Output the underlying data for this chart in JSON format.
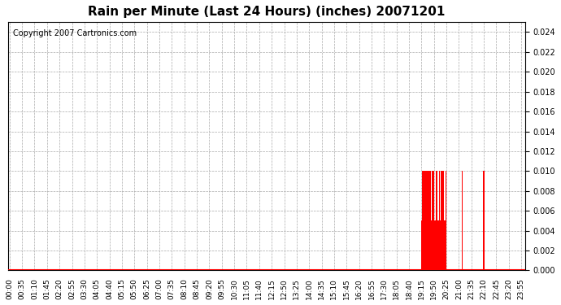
{
  "title": "Rain per Minute (Last 24 Hours) (inches) 20071201",
  "copyright_text": "Copyright 2007 Cartronics.com",
  "bar_color": "#ff0000",
  "baseline_color": "#ff0000",
  "background_color": "#ffffff",
  "grid_color": "#aaaaaa",
  "ylim": [
    0.0,
    0.025
  ],
  "yticks": [
    0.0,
    0.002,
    0.004,
    0.006,
    0.008,
    0.01,
    0.012,
    0.014,
    0.016,
    0.018,
    0.02,
    0.022,
    0.024
  ],
  "total_minutes": 1440,
  "x_tick_labels": [
    "00:00",
    "00:35",
    "01:10",
    "01:45",
    "02:20",
    "02:55",
    "03:30",
    "04:05",
    "04:40",
    "05:15",
    "05:50",
    "06:25",
    "07:00",
    "07:35",
    "08:10",
    "08:45",
    "09:20",
    "09:55",
    "10:30",
    "11:05",
    "11:40",
    "12:15",
    "12:50",
    "13:25",
    "14:00",
    "14:35",
    "15:10",
    "15:45",
    "16:20",
    "16:55",
    "17:30",
    "18:05",
    "18:40",
    "19:15",
    "19:50",
    "20:25",
    "21:00",
    "21:35",
    "22:10",
    "22:45",
    "23:20",
    "23:55"
  ],
  "x_tick_positions_minutes": [
    0,
    35,
    70,
    105,
    140,
    175,
    210,
    245,
    280,
    315,
    350,
    385,
    420,
    455,
    490,
    525,
    560,
    595,
    630,
    665,
    700,
    735,
    770,
    805,
    840,
    875,
    910,
    945,
    980,
    1015,
    1050,
    1085,
    1120,
    1155,
    1190,
    1225,
    1260,
    1295,
    1330,
    1365,
    1400,
    1435
  ],
  "rain_data": [
    {
      "minute": 1155,
      "value": 0.005
    },
    {
      "minute": 1158,
      "value": 0.01
    },
    {
      "minute": 1160,
      "value": 0.01
    },
    {
      "minute": 1163,
      "value": 0.01
    },
    {
      "minute": 1165,
      "value": 0.005
    },
    {
      "minute": 1167,
      "value": 0.01
    },
    {
      "minute": 1170,
      "value": 0.01
    },
    {
      "minute": 1172,
      "value": 0.005
    },
    {
      "minute": 1174,
      "value": 0.01
    },
    {
      "minute": 1177,
      "value": 0.01
    },
    {
      "minute": 1180,
      "value": 0.01
    },
    {
      "minute": 1183,
      "value": 0.005
    },
    {
      "minute": 1186,
      "value": 0.01
    },
    {
      "minute": 1190,
      "value": 0.01
    },
    {
      "minute": 1193,
      "value": 0.005
    },
    {
      "minute": 1196,
      "value": 0.01
    },
    {
      "minute": 1199,
      "value": 0.01
    },
    {
      "minute": 1202,
      "value": 0.005
    },
    {
      "minute": 1205,
      "value": 0.01
    },
    {
      "minute": 1208,
      "value": 0.005
    },
    {
      "minute": 1211,
      "value": 0.01
    },
    {
      "minute": 1214,
      "value": 0.01
    },
    {
      "minute": 1217,
      "value": 0.01
    },
    {
      "minute": 1220,
      "value": 0.005
    },
    {
      "minute": 1223,
      "value": 0.01
    },
    {
      "minute": 1270,
      "value": 0.01
    },
    {
      "minute": 1330,
      "value": 0.01
    }
  ]
}
